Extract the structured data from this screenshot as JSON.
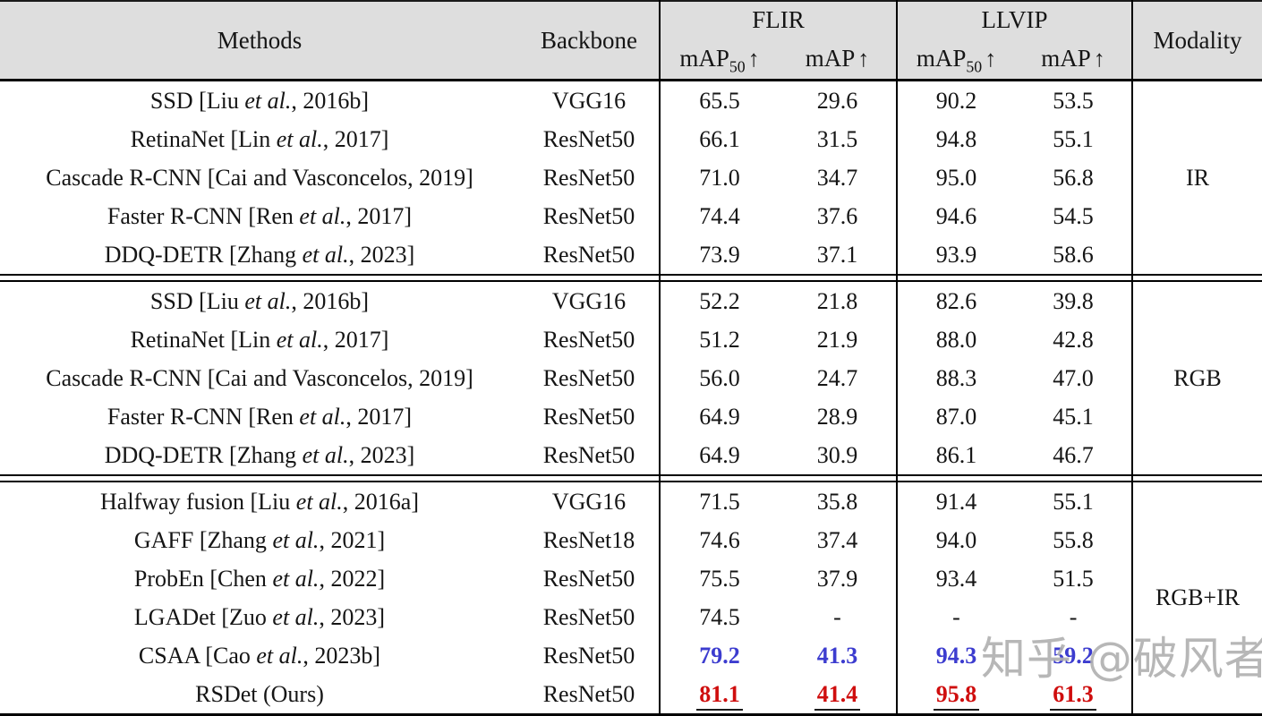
{
  "table": {
    "header": {
      "methods": "Methods",
      "backbone": "Backbone",
      "flir": "FLIR",
      "llvip": "LLVIP",
      "modality": "Modality",
      "map_base": "mAP",
      "map50_sub": "50",
      "up_arrow": "↑"
    },
    "blocks": [
      {
        "modality": "IR",
        "rows": [
          {
            "method": "SSD [Liu et al., 2016b]",
            "backbone": "VGG16",
            "flir_map50": "65.5",
            "flir_map": "29.6",
            "llvip_map50": "90.2",
            "llvip_map": "53.5",
            "highlight": null
          },
          {
            "method": "RetinaNet [Lin et al., 2017]",
            "backbone": "ResNet50",
            "flir_map50": "66.1",
            "flir_map": "31.5",
            "llvip_map50": "94.8",
            "llvip_map": "55.1",
            "highlight": null
          },
          {
            "method": "Cascade R-CNN [Cai and Vasconcelos, 2019]",
            "backbone": "ResNet50",
            "flir_map50": "71.0",
            "flir_map": "34.7",
            "llvip_map50": "95.0",
            "llvip_map": "56.8",
            "highlight": null
          },
          {
            "method": "Faster R-CNN [Ren et al., 2017]",
            "backbone": "ResNet50",
            "flir_map50": "74.4",
            "flir_map": "37.6",
            "llvip_map50": "94.6",
            "llvip_map": "54.5",
            "highlight": null
          },
          {
            "method": "DDQ-DETR [Zhang et al., 2023]",
            "backbone": "ResNet50",
            "flir_map50": "73.9",
            "flir_map": "37.1",
            "llvip_map50": "93.9",
            "llvip_map": "58.6",
            "highlight": null
          }
        ]
      },
      {
        "modality": "RGB",
        "rows": [
          {
            "method": "SSD [Liu et al., 2016b]",
            "backbone": "VGG16",
            "flir_map50": "52.2",
            "flir_map": "21.8",
            "llvip_map50": "82.6",
            "llvip_map": "39.8",
            "highlight": null
          },
          {
            "method": "RetinaNet [Lin et al., 2017]",
            "backbone": "ResNet50",
            "flir_map50": "51.2",
            "flir_map": "21.9",
            "llvip_map50": "88.0",
            "llvip_map": "42.8",
            "highlight": null
          },
          {
            "method": "Cascade R-CNN [Cai and Vasconcelos, 2019]",
            "backbone": "ResNet50",
            "flir_map50": "56.0",
            "flir_map": "24.7",
            "llvip_map50": "88.3",
            "llvip_map": "47.0",
            "highlight": null
          },
          {
            "method": "Faster R-CNN [Ren et al., 2017]",
            "backbone": "ResNet50",
            "flir_map50": "64.9",
            "flir_map": "28.9",
            "llvip_map50": "87.0",
            "llvip_map": "45.1",
            "highlight": null
          },
          {
            "method": "DDQ-DETR [Zhang et al., 2023]",
            "backbone": "ResNet50",
            "flir_map50": "64.9",
            "flir_map": "30.9",
            "llvip_map50": "86.1",
            "llvip_map": "46.7",
            "highlight": null
          }
        ]
      },
      {
        "modality": "RGB+IR",
        "rows": [
          {
            "method": "Halfway fusion [Liu et al., 2016a]",
            "backbone": "VGG16",
            "flir_map50": "71.5",
            "flir_map": "35.8",
            "llvip_map50": "91.4",
            "llvip_map": "55.1",
            "highlight": null
          },
          {
            "method": "GAFF [Zhang et al., 2021]",
            "backbone": "ResNet18",
            "flir_map50": "74.6",
            "flir_map": "37.4",
            "llvip_map50": "94.0",
            "llvip_map": "55.8",
            "highlight": null
          },
          {
            "method": "ProbEn [Chen et al., 2022]",
            "backbone": "ResNet50",
            "flir_map50": "75.5",
            "flir_map": "37.9",
            "llvip_map50": "93.4",
            "llvip_map": "51.5",
            "highlight": null
          },
          {
            "method": "LGADet [Zuo et al., 2023]",
            "backbone": "ResNet50",
            "flir_map50": "74.5",
            "flir_map": "-",
            "llvip_map50": "-",
            "llvip_map": "-",
            "highlight": null
          },
          {
            "method": "CSAA [Cao et al., 2023b]",
            "backbone": "ResNet50",
            "flir_map50": "79.2",
            "flir_map": "41.3",
            "llvip_map50": "94.3",
            "llvip_map": "59.2",
            "highlight": "second"
          },
          {
            "method": "RSDet (Ours)",
            "backbone": "ResNet50",
            "flir_map50": "81.1",
            "flir_map": "41.4",
            "llvip_map50": "95.8",
            "llvip_map": "61.3",
            "highlight": "best"
          }
        ]
      }
    ]
  },
  "colors": {
    "best_red": "#cf0e0e",
    "second_blue": "#3c3ccf",
    "header_bg": "#dedede",
    "watermark_gray": "#b0b0b0"
  },
  "watermark": {
    "text": "知乎 @破风者"
  }
}
